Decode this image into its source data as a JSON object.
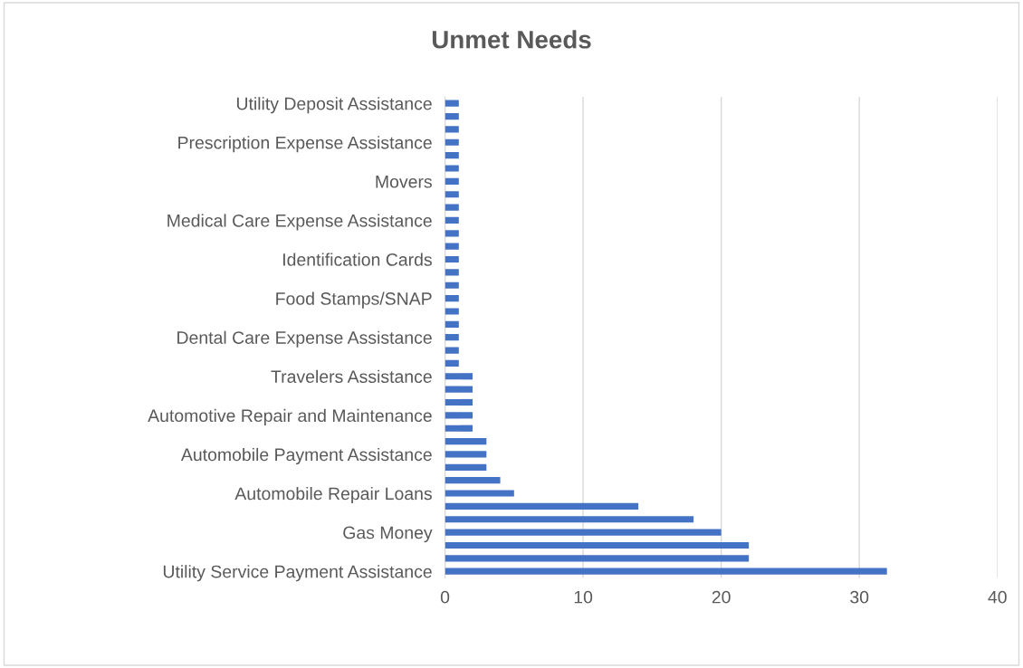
{
  "chart_data": {
    "type": "bar",
    "title": "Unmet Needs",
    "orientation": "horizontal",
    "categories": [
      "Utility Deposit Assistance",
      null,
      null,
      "Prescription Expense Assistance",
      null,
      null,
      "Movers",
      null,
      null,
      "Medical Care Expense Assistance",
      null,
      null,
      "Identification Cards",
      null,
      null,
      "Food Stamps/SNAP",
      null,
      null,
      "Dental Care Expense Assistance",
      null,
      null,
      "Travelers Assistance",
      null,
      null,
      "Automotive Repair and Maintenance",
      null,
      null,
      "Automobile Payment Assistance",
      null,
      null,
      "Automobile Repair Loans",
      null,
      null,
      "Gas Money",
      null,
      null,
      "Utility Service Payment Assistance"
    ],
    "values": [
      1,
      1,
      1,
      1,
      1,
      1,
      1,
      1,
      1,
      1,
      1,
      1,
      1,
      1,
      1,
      1,
      1,
      1,
      1,
      1,
      1,
      2,
      2,
      2,
      2,
      2,
      3,
      3,
      3,
      4,
      5,
      14,
      18,
      20,
      22,
      22,
      32
    ],
    "color": "#4472c4",
    "xlim": [
      0,
      40
    ],
    "xticks": [
      0,
      10,
      20,
      30,
      40
    ],
    "grid": "x",
    "legend": false
  }
}
